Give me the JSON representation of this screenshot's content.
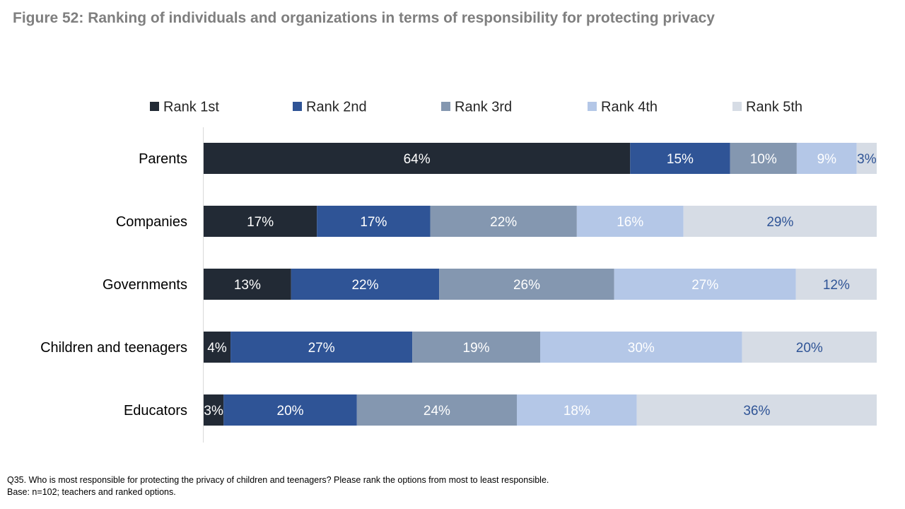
{
  "title": "Figure 52: Ranking of individuals and organizations in terms of responsibility for protecting privacy",
  "footnotes": {
    "question": "Q35. Who is most responsible for protecting the privacy of children and teenagers? Please rank the options from most to least responsible.",
    "base": "Base: n=102; teachers and ranked options."
  },
  "chart_data": {
    "type": "bar",
    "orientation": "horizontal",
    "stacked": true,
    "title": "Figure 52: Ranking of individuals and organizations in terms of responsibility for protecting privacy",
    "xlabel": "",
    "ylabel": "",
    "xlim": [
      0,
      100
    ],
    "legend_position": "top",
    "categories": [
      "Parents",
      "Companies",
      "Governments",
      "Children and teenagers",
      "Educators"
    ],
    "series": [
      {
        "name": "Rank 1st",
        "color": "#222a35",
        "label_color": "#ffffff",
        "values": [
          64,
          17,
          13,
          4,
          3
        ]
      },
      {
        "name": "Rank 2nd",
        "color": "#2f5496",
        "label_color": "#ffffff",
        "values": [
          15,
          17,
          22,
          27,
          20
        ]
      },
      {
        "name": "Rank 3rd",
        "color": "#8497b0",
        "label_color": "#ffffff",
        "values": [
          10,
          22,
          26,
          19,
          24
        ]
      },
      {
        "name": "Rank 4th",
        "color": "#b4c7e7",
        "label_color": "#ffffff",
        "values": [
          9,
          16,
          27,
          30,
          18
        ]
      },
      {
        "name": "Rank 5th",
        "color": "#d6dce5",
        "label_color": "#2f5496",
        "values": [
          3,
          29,
          12,
          20,
          36
        ]
      }
    ]
  }
}
